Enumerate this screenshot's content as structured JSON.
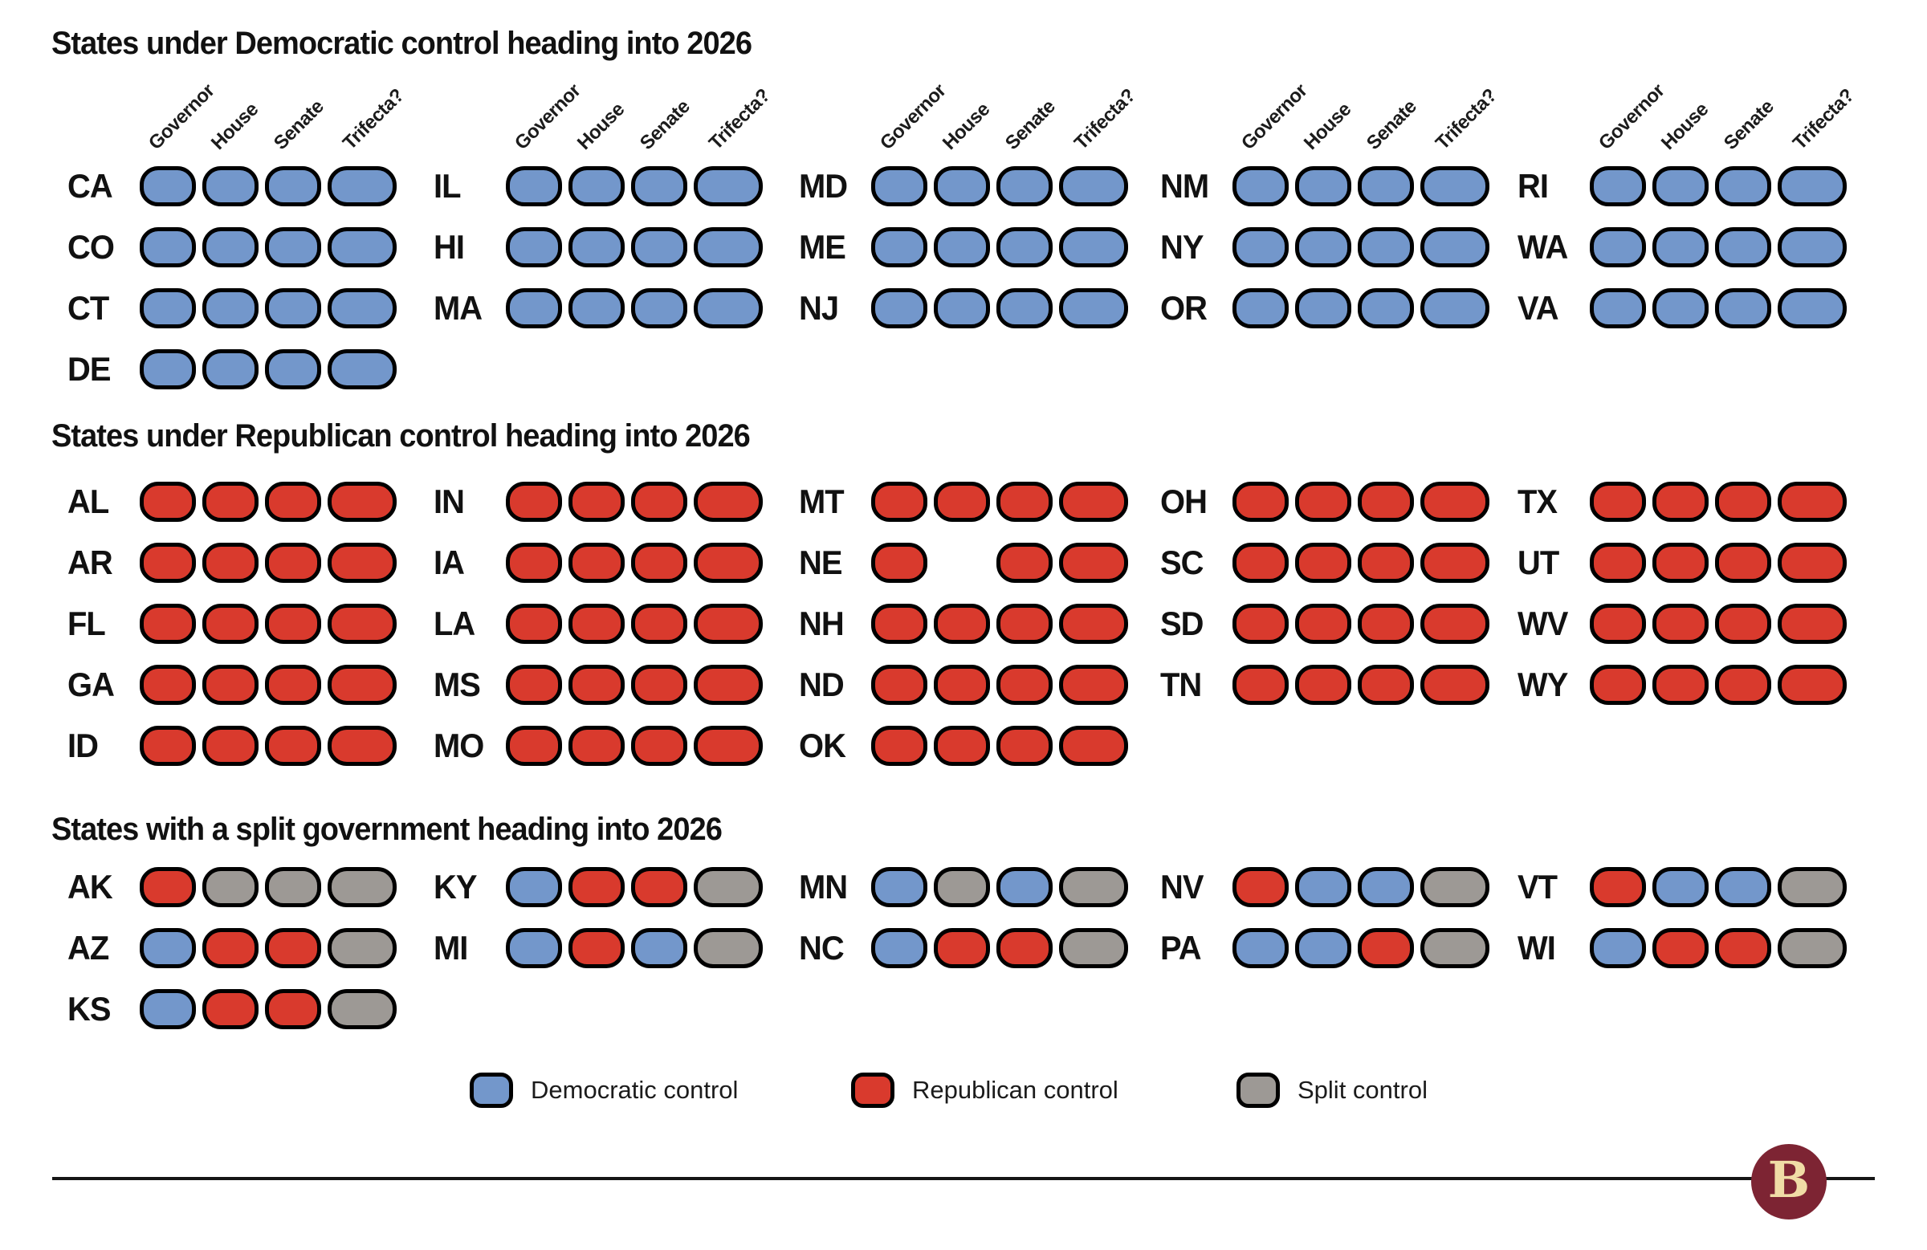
{
  "chart_data": {
    "type": "table",
    "columns": [
      "Governor",
      "House",
      "Senate",
      "Trifecta?"
    ],
    "value_legend": {
      "D": "Democratic control",
      "R": "Republican control",
      "S": "Split control",
      "null": "no chamber"
    },
    "sections": [
      {
        "title": "States under Democratic control heading into 2026",
        "show_column_headers": true,
        "columns": [
          [
            {
              "state": "CA",
              "control": [
                "D",
                "D",
                "D",
                "D"
              ]
            },
            {
              "state": "CO",
              "control": [
                "D",
                "D",
                "D",
                "D"
              ]
            },
            {
              "state": "CT",
              "control": [
                "D",
                "D",
                "D",
                "D"
              ]
            },
            {
              "state": "DE",
              "control": [
                "D",
                "D",
                "D",
                "D"
              ]
            }
          ],
          [
            {
              "state": "IL",
              "control": [
                "D",
                "D",
                "D",
                "D"
              ]
            },
            {
              "state": "HI",
              "control": [
                "D",
                "D",
                "D",
                "D"
              ]
            },
            {
              "state": "MA",
              "control": [
                "D",
                "D",
                "D",
                "D"
              ]
            }
          ],
          [
            {
              "state": "MD",
              "control": [
                "D",
                "D",
                "D",
                "D"
              ]
            },
            {
              "state": "ME",
              "control": [
                "D",
                "D",
                "D",
                "D"
              ]
            },
            {
              "state": "NJ",
              "control": [
                "D",
                "D",
                "D",
                "D"
              ]
            }
          ],
          [
            {
              "state": "NM",
              "control": [
                "D",
                "D",
                "D",
                "D"
              ]
            },
            {
              "state": "NY",
              "control": [
                "D",
                "D",
                "D",
                "D"
              ]
            },
            {
              "state": "OR",
              "control": [
                "D",
                "D",
                "D",
                "D"
              ]
            }
          ],
          [
            {
              "state": "RI",
              "control": [
                "D",
                "D",
                "D",
                "D"
              ]
            },
            {
              "state": "WA",
              "control": [
                "D",
                "D",
                "D",
                "D"
              ]
            },
            {
              "state": "VA",
              "control": [
                "D",
                "D",
                "D",
                "D"
              ]
            }
          ]
        ]
      },
      {
        "title": "States under Republican control heading into 2026",
        "show_column_headers": false,
        "columns": [
          [
            {
              "state": "AL",
              "control": [
                "R",
                "R",
                "R",
                "R"
              ]
            },
            {
              "state": "AR",
              "control": [
                "R",
                "R",
                "R",
                "R"
              ]
            },
            {
              "state": "FL",
              "control": [
                "R",
                "R",
                "R",
                "R"
              ]
            },
            {
              "state": "GA",
              "control": [
                "R",
                "R",
                "R",
                "R"
              ]
            },
            {
              "state": "ID",
              "control": [
                "R",
                "R",
                "R",
                "R"
              ]
            }
          ],
          [
            {
              "state": "IN",
              "control": [
                "R",
                "R",
                "R",
                "R"
              ]
            },
            {
              "state": "IA",
              "control": [
                "R",
                "R",
                "R",
                "R"
              ]
            },
            {
              "state": "LA",
              "control": [
                "R",
                "R",
                "R",
                "R"
              ]
            },
            {
              "state": "MS",
              "control": [
                "R",
                "R",
                "R",
                "R"
              ]
            },
            {
              "state": "MO",
              "control": [
                "R",
                "R",
                "R",
                "R"
              ]
            }
          ],
          [
            {
              "state": "MT",
              "control": [
                "R",
                "R",
                "R",
                "R"
              ]
            },
            {
              "state": "NE",
              "control": [
                "R",
                null,
                "R",
                "R"
              ]
            },
            {
              "state": "NH",
              "control": [
                "R",
                "R",
                "R",
                "R"
              ]
            },
            {
              "state": "ND",
              "control": [
                "R",
                "R",
                "R",
                "R"
              ]
            },
            {
              "state": "OK",
              "control": [
                "R",
                "R",
                "R",
                "R"
              ]
            }
          ],
          [
            {
              "state": "OH",
              "control": [
                "R",
                "R",
                "R",
                "R"
              ]
            },
            {
              "state": "SC",
              "control": [
                "R",
                "R",
                "R",
                "R"
              ]
            },
            {
              "state": "SD",
              "control": [
                "R",
                "R",
                "R",
                "R"
              ]
            },
            {
              "state": "TN",
              "control": [
                "R",
                "R",
                "R",
                "R"
              ]
            }
          ],
          [
            {
              "state": "TX",
              "control": [
                "R",
                "R",
                "R",
                "R"
              ]
            },
            {
              "state": "UT",
              "control": [
                "R",
                "R",
                "R",
                "R"
              ]
            },
            {
              "state": "WV",
              "control": [
                "R",
                "R",
                "R",
                "R"
              ]
            },
            {
              "state": "WY",
              "control": [
                "R",
                "R",
                "R",
                "R"
              ]
            }
          ]
        ]
      },
      {
        "title": "States with a split government heading into 2026",
        "show_column_headers": false,
        "columns": [
          [
            {
              "state": "AK",
              "control": [
                "R",
                "S",
                "S",
                "S"
              ]
            },
            {
              "state": "AZ",
              "control": [
                "D",
                "R",
                "R",
                "S"
              ]
            },
            {
              "state": "KS",
              "control": [
                "D",
                "R",
                "R",
                "S"
              ]
            }
          ],
          [
            {
              "state": "KY",
              "control": [
                "D",
                "R",
                "R",
                "S"
              ]
            },
            {
              "state": "MI",
              "control": [
                "D",
                "R",
                "D",
                "S"
              ]
            }
          ],
          [
            {
              "state": "MN",
              "control": [
                "D",
                "S",
                "D",
                "S"
              ]
            },
            {
              "state": "NC",
              "control": [
                "D",
                "R",
                "R",
                "S"
              ]
            }
          ],
          [
            {
              "state": "NV",
              "control": [
                "R",
                "D",
                "D",
                "S"
              ]
            },
            {
              "state": "PA",
              "control": [
                "D",
                "D",
                "R",
                "S"
              ]
            }
          ],
          [
            {
              "state": "VT",
              "control": [
                "R",
                "D",
                "D",
                "S"
              ]
            },
            {
              "state": "WI",
              "control": [
                "D",
                "R",
                "R",
                "S"
              ]
            }
          ]
        ]
      }
    ]
  },
  "legend": {
    "items": [
      {
        "label": "Democratic control",
        "value": "D"
      },
      {
        "label": "Republican control",
        "value": "R"
      },
      {
        "label": "Split control",
        "value": "S"
      }
    ]
  },
  "colors": {
    "democratic": "#7397CB",
    "republican": "#D93A2D",
    "split": "#9D9995",
    "pill_border": "#000000",
    "divider": "#161616",
    "logo_background": "#7D2433",
    "logo_letter_color": "#F0DCA6"
  },
  "logo": {
    "letter": "B"
  }
}
